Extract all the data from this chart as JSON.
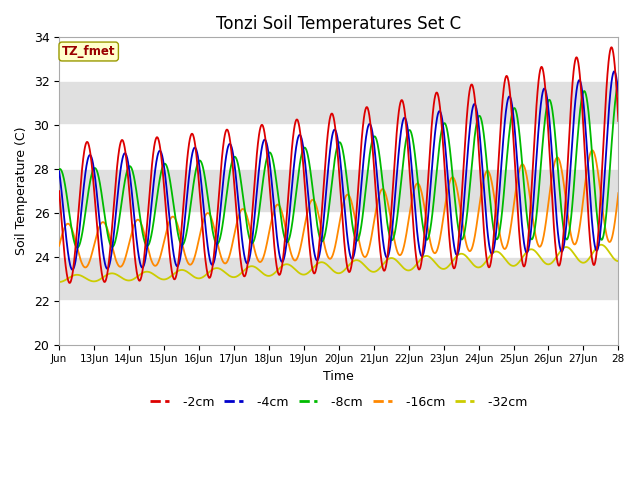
{
  "title": "Tonzi Soil Temperatures Set C",
  "xlabel": "Time",
  "ylabel": "Soil Temperature (C)",
  "ylim": [
    20,
    34
  ],
  "yticks": [
    20,
    22,
    24,
    26,
    28,
    30,
    32,
    34
  ],
  "xtick_labels": [
    "Jun",
    "13Jun",
    "14Jun",
    "15Jun",
    "16Jun",
    "17Jun",
    "18Jun",
    "19Jun",
    "20Jun",
    "21Jun",
    "22Jun",
    "23Jun",
    "24Jun",
    "25Jun",
    "26Jun",
    "27Jun",
    "28"
  ],
  "colors": {
    "-2cm": "#dd0000",
    "-4cm": "#0000cc",
    "-8cm": "#00bb00",
    "-16cm": "#ff8800",
    "-32cm": "#cccc00"
  },
  "annotation_text": "TZ_fmet",
  "annotation_box_color": "#ffffcc",
  "annotation_text_color": "#990000",
  "background_color": "#ffffff",
  "plot_bg_color": "#e0e0e0",
  "white_band_color": "#f0f0f0"
}
